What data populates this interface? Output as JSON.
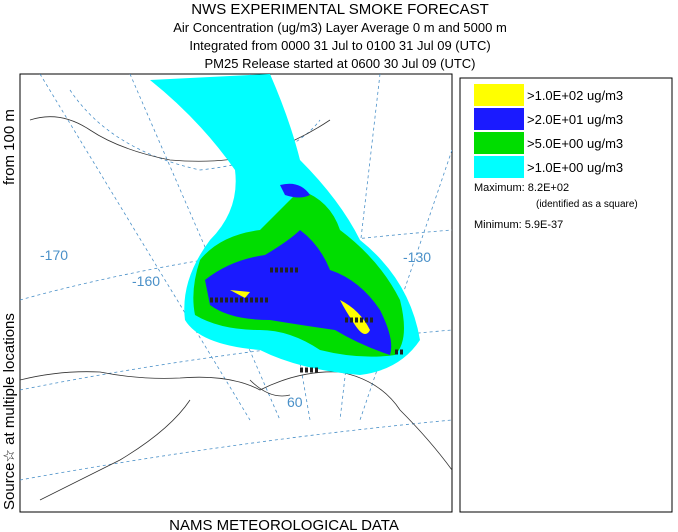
{
  "header": {
    "title": "NWS EXPERIMENTAL SMOKE FORECAST",
    "lines": [
      "Air Concentration (ug/m3) Layer Average    0 m and  5000 m",
      "Integrated from 0000 31 Jul to 0100 31 Jul 09 (UTC)",
      "PM25 Release started at 0600 30 Jul 09 (UTC)"
    ]
  },
  "side_label": {
    "source": "Source☆ at multiple locations",
    "height": "from   100 m"
  },
  "footer": "NAMS METEOROLOGICAL DATA",
  "map_labels": [
    "-170",
    "-160",
    "-130",
    "60"
  ],
  "legend": {
    "items": [
      {
        "label": ">1.0E+02 ug/m3",
        "color": "#ffff00"
      },
      {
        "label": ">2.0E+01 ug/m3",
        "color": "#1a1aff"
      },
      {
        "label": ">5.0E+00 ug/m3",
        "color": "#00dd00"
      },
      {
        "label": ">1.0E+00 ug/m3",
        "color": "#00ffff"
      }
    ],
    "maximum": "Maximum: 8.2E+02",
    "maximum_note": "(identified as a square)",
    "minimum": "Minimum: 5.9E-37"
  }
}
